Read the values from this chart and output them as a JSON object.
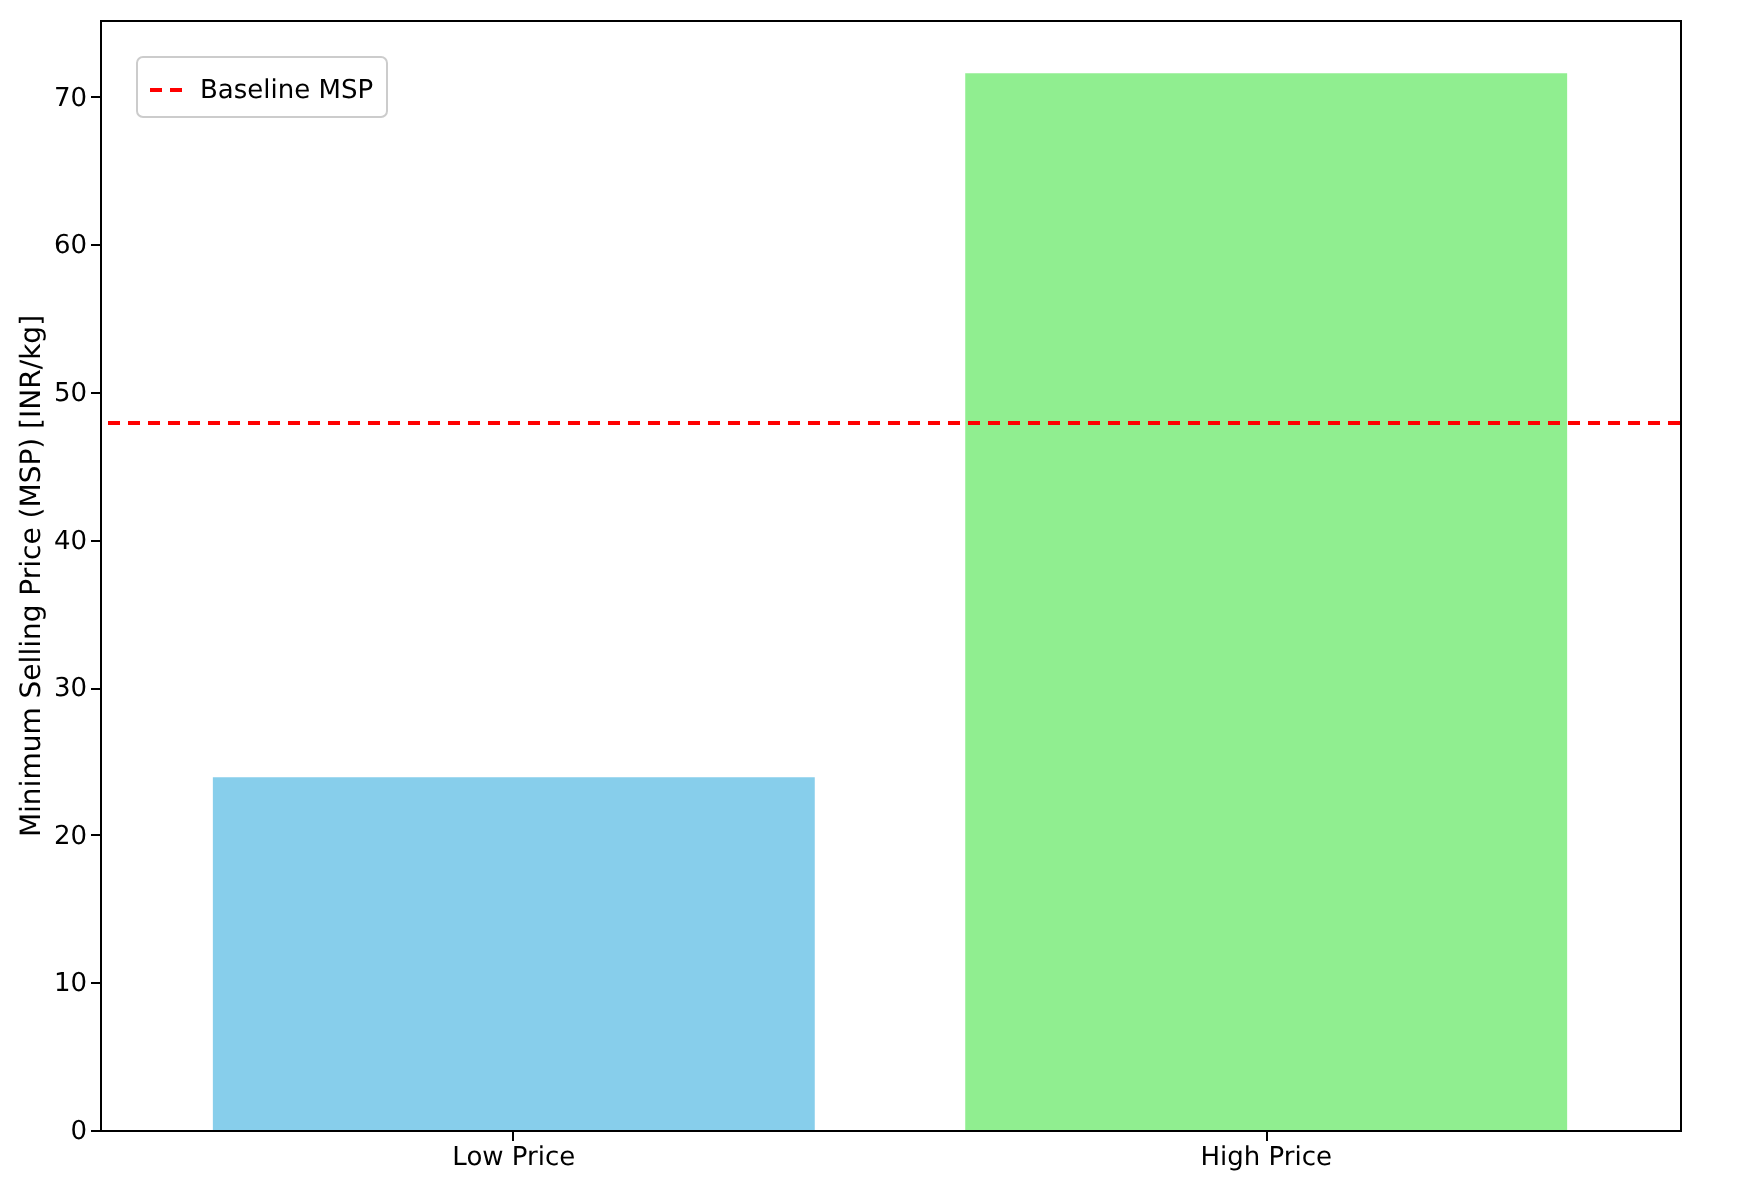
{
  "chart_data": {
    "type": "bar",
    "ylabel": "Minimum Selling Price (MSP) [INR/kg]",
    "categories": [
      "Low Price",
      "High Price"
    ],
    "values": [
      23.9,
      71.6
    ],
    "colors": [
      "#87ceeb",
      "#90ee90"
    ],
    "ylim": [
      0,
      75.2
    ],
    "yticks": [
      0,
      10,
      20,
      30,
      40,
      50,
      60,
      70
    ],
    "ref_lines": [
      {
        "axis": "y",
        "value": 47.9,
        "label": "Baseline MSP",
        "color": "#ff0000",
        "line_style": "dashed"
      }
    ],
    "grid": false,
    "legend": "top left"
  }
}
